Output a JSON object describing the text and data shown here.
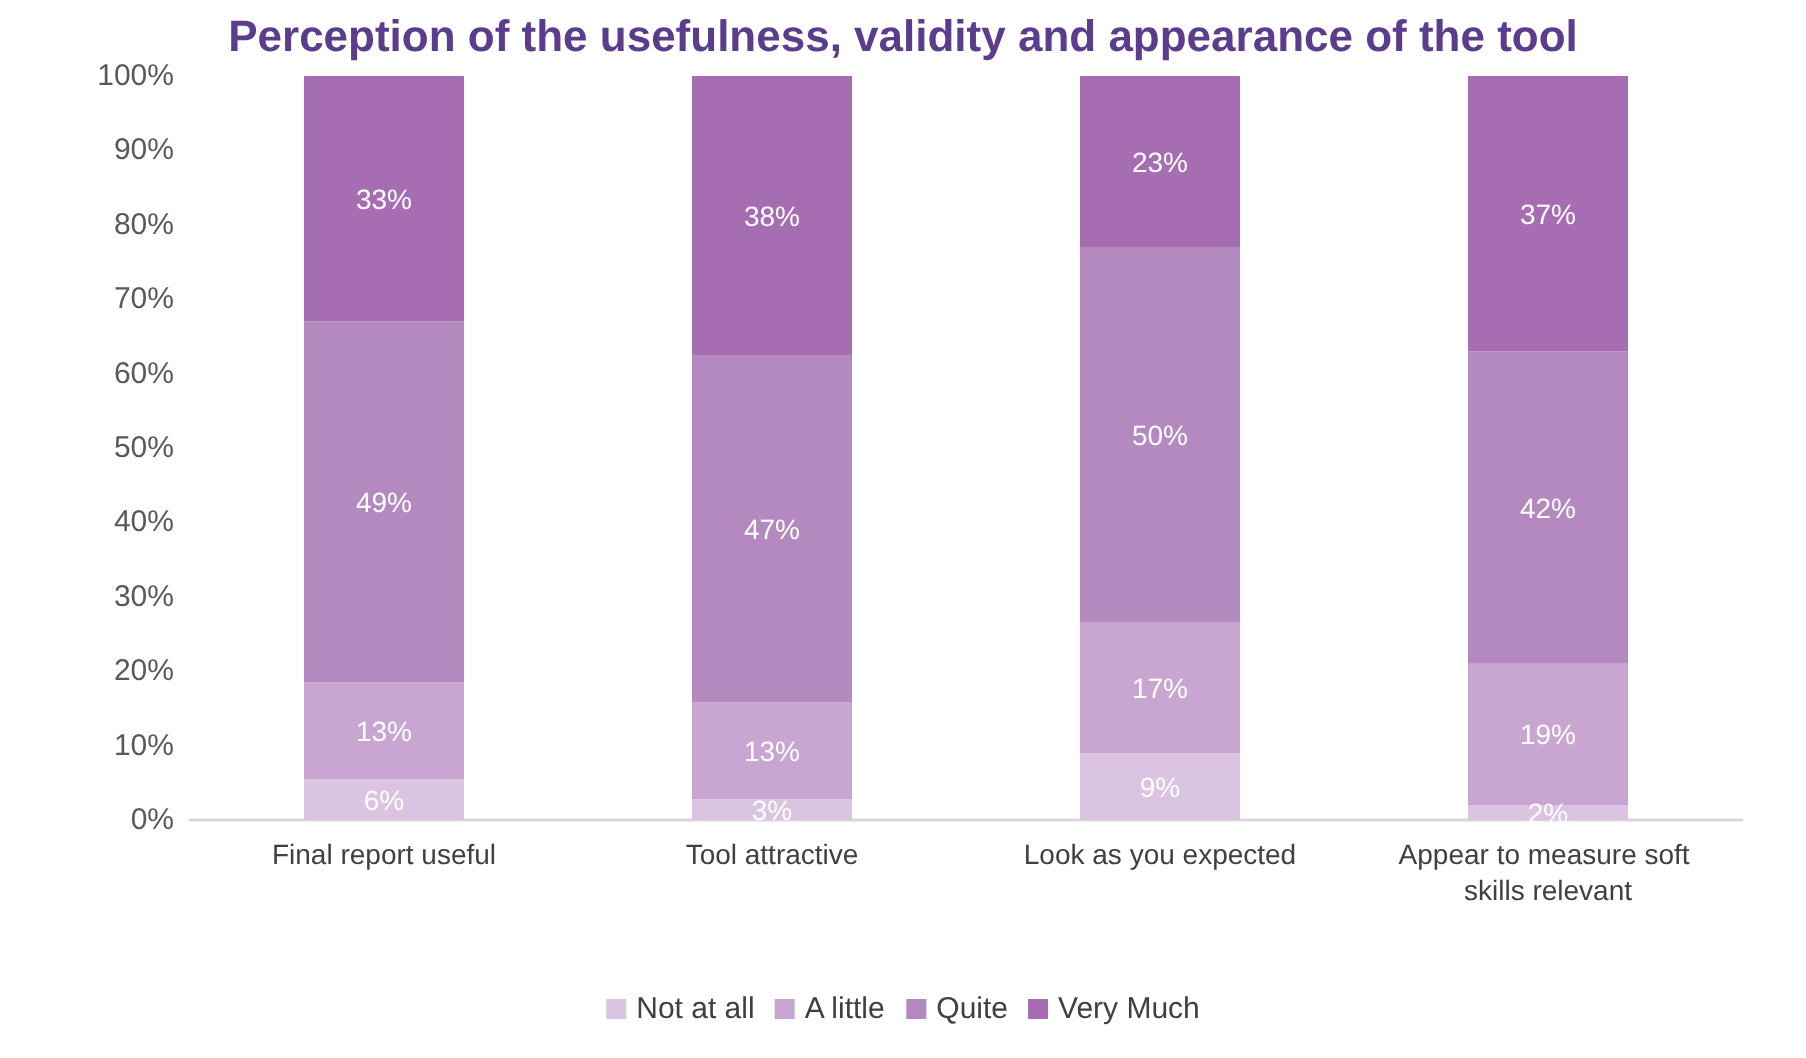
{
  "chart_data": {
    "type": "bar",
    "title": "Perception of the usefulness, validity and appearance of the tool",
    "categories": [
      "Final report useful",
      "Tool attractive",
      "Look as you expected",
      "Appear to measure soft skills relevant"
    ],
    "stacked": true,
    "series": [
      {
        "name": "Not at all",
        "color": "#dbc4e1",
        "values": [
          5.5,
          2.8,
          9,
          2
        ],
        "value_labels": [
          "6%",
          "3%",
          "9%",
          "2%"
        ]
      },
      {
        "name": "A little",
        "color": "#c9a6d2",
        "values": [
          13,
          13,
          17.5,
          19
        ],
        "value_labels": [
          "13%",
          "13%",
          "17%",
          "19%"
        ]
      },
      {
        "name": "Quite",
        "color": "#b389bf",
        "values": [
          48.5,
          46.7,
          50.5,
          42
        ],
        "value_labels": [
          "49%",
          "47%",
          "50%",
          "42%"
        ]
      },
      {
        "name": "Very Much",
        "color": "#a66db2",
        "values": [
          33,
          37.5,
          23,
          37
        ],
        "value_labels": [
          "33%",
          "38%",
          "23%",
          "37%"
        ]
      }
    ],
    "ylim": [
      0,
      100
    ],
    "yticks": [
      {
        "value": 0,
        "label": "0%"
      },
      {
        "value": 10,
        "label": "10%"
      },
      {
        "value": 20,
        "label": "20%"
      },
      {
        "value": 30,
        "label": "30%"
      },
      {
        "value": 40,
        "label": "40%"
      },
      {
        "value": 50,
        "label": "50%"
      },
      {
        "value": 60,
        "label": "60%"
      },
      {
        "value": 70,
        "label": "70%"
      },
      {
        "value": 80,
        "label": "80%"
      },
      {
        "value": 90,
        "label": "90%"
      },
      {
        "value": 100,
        "label": "100%"
      }
    ],
    "grid": false,
    "legend": "bottom"
  }
}
